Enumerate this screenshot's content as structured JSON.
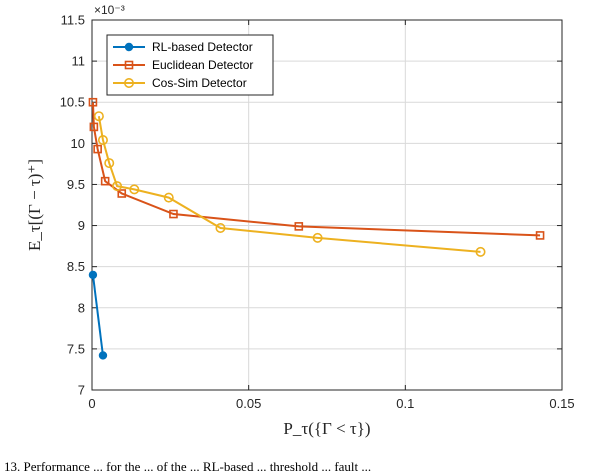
{
  "colors": {
    "rl": "#0072BD",
    "euclid": "#D95319",
    "cos": "#EDB120",
    "grid": "#d9d9d9",
    "axis": "#262626"
  },
  "chart_data": {
    "type": "line",
    "xlabel": "P_τ({Γ < τ})",
    "ylabel": "E_τ[(Γ − τ)⁺]",
    "y_exponent_label": "×10⁻³",
    "xlim": [
      0,
      0.15
    ],
    "ylim": [
      7,
      11.5
    ],
    "xticks": [
      0,
      0.05,
      0.1,
      0.15
    ],
    "xtick_labels": [
      "0",
      "0.05",
      "0.1",
      "0.15"
    ],
    "yticks": [
      7,
      7.5,
      8,
      8.5,
      9,
      9.5,
      10,
      10.5,
      11,
      11.5
    ],
    "ytick_labels": [
      "7",
      "7.5",
      "8",
      "8.5",
      "9",
      "9.5",
      "10",
      "10.5",
      "11",
      "11.5"
    ],
    "grid": true,
    "legend_position": "top-left",
    "series": [
      {
        "name": "RL-based Detector",
        "color_key": "rl",
        "marker": "filled-circle",
        "points": [
          [
            0.0003,
            8.4
          ],
          [
            0.0035,
            7.42
          ]
        ]
      },
      {
        "name": "Euclidean Detector",
        "color_key": "euclid",
        "marker": "square",
        "points": [
          [
            0.0003,
            10.5
          ],
          [
            0.0006,
            10.2
          ],
          [
            0.0018,
            9.93
          ],
          [
            0.0042,
            9.54
          ],
          [
            0.0095,
            9.39
          ],
          [
            0.026,
            9.14
          ],
          [
            0.066,
            8.99
          ],
          [
            0.143,
            8.88
          ]
        ]
      },
      {
        "name": "Cos-Sim Detector",
        "color_key": "cos",
        "marker": "open-circle",
        "points": [
          [
            0.0022,
            10.33
          ],
          [
            0.0035,
            10.04
          ],
          [
            0.0055,
            9.76
          ],
          [
            0.008,
            9.48
          ],
          [
            0.0135,
            9.44
          ],
          [
            0.0245,
            9.34
          ],
          [
            0.041,
            8.97
          ],
          [
            0.072,
            8.85
          ],
          [
            0.124,
            8.68
          ]
        ]
      }
    ]
  },
  "caption_fragment": "13.  Performance ... for the ... of the ... RL-based ... threshold ... fault ..."
}
